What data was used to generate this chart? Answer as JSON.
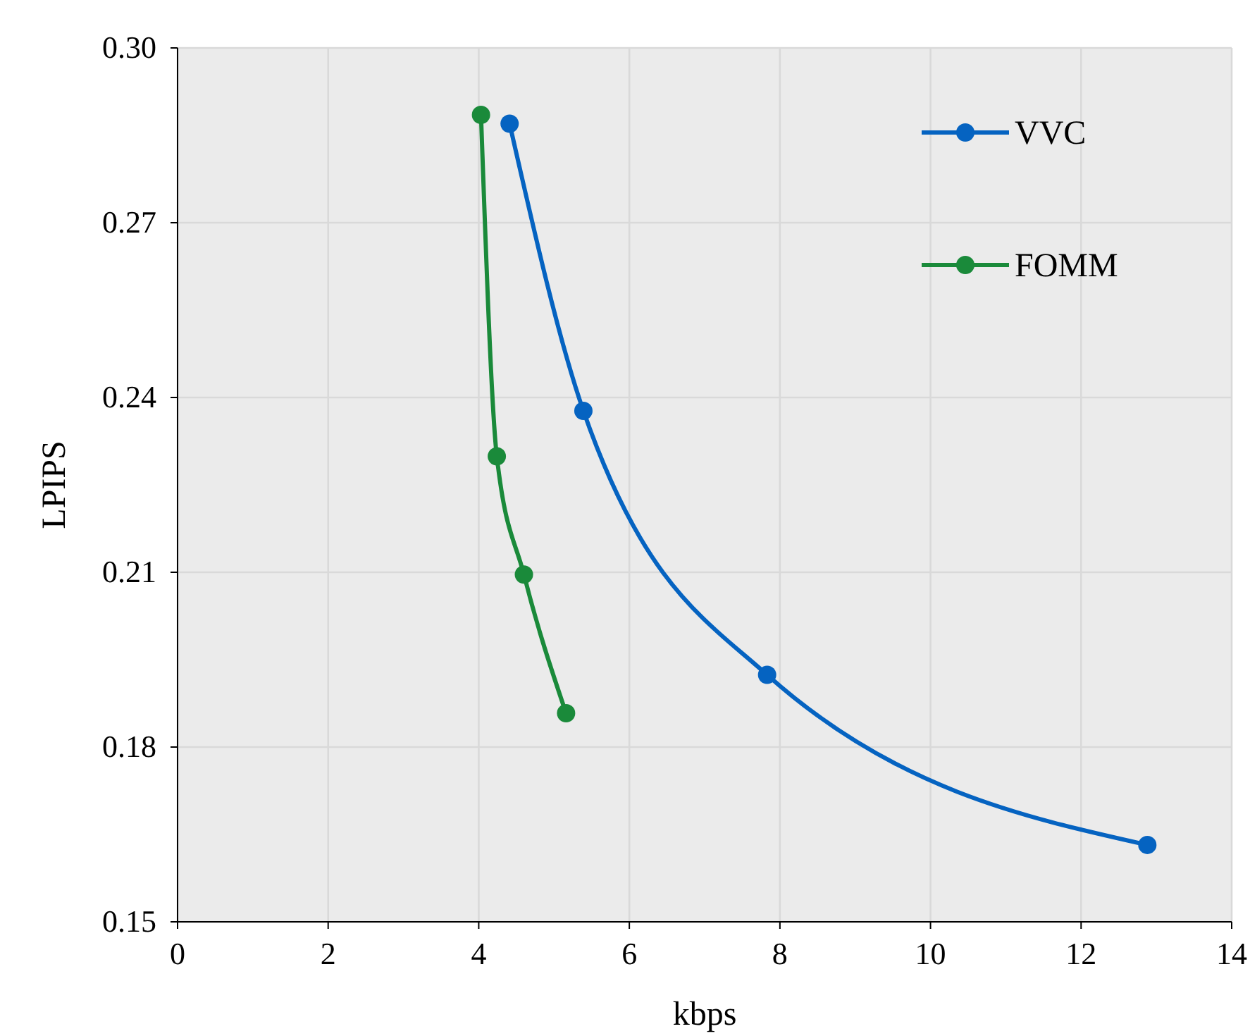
{
  "chart_data": {
    "type": "line",
    "xlabel": "kbps",
    "ylabel": "LPIPS",
    "xlim": [
      0,
      14
    ],
    "xticks": [
      0,
      2,
      4,
      6,
      8,
      10,
      12,
      14
    ],
    "ylim": [
      0.15,
      0.3
    ],
    "yticks": [
      {
        "value": 0.15,
        "label": "0.15"
      },
      {
        "value": 0.18,
        "label": "0.18"
      },
      {
        "value": 0.21,
        "label": "0.21"
      },
      {
        "value": 0.24,
        "label": "0.24"
      },
      {
        "value": 0.27,
        "label": "0.27"
      },
      {
        "value": 0.3,
        "label": "0.30"
      }
    ],
    "grid": true,
    "legend": "top right",
    "marker": "circle",
    "line_style": "solid",
    "series": [
      {
        "name": "VVC",
        "color": "#0563c1",
        "x": [
          4.41,
          5.39,
          7.83,
          12.88
        ],
        "values": [
          0.287,
          0.2377,
          0.1924,
          0.1632
        ]
      },
      {
        "name": "FOMM",
        "color": "#1a8a3a",
        "x": [
          4.03,
          4.24,
          4.6,
          5.16
        ],
        "values": [
          0.2885,
          0.2299,
          0.2096,
          0.1858
        ]
      }
    ]
  }
}
